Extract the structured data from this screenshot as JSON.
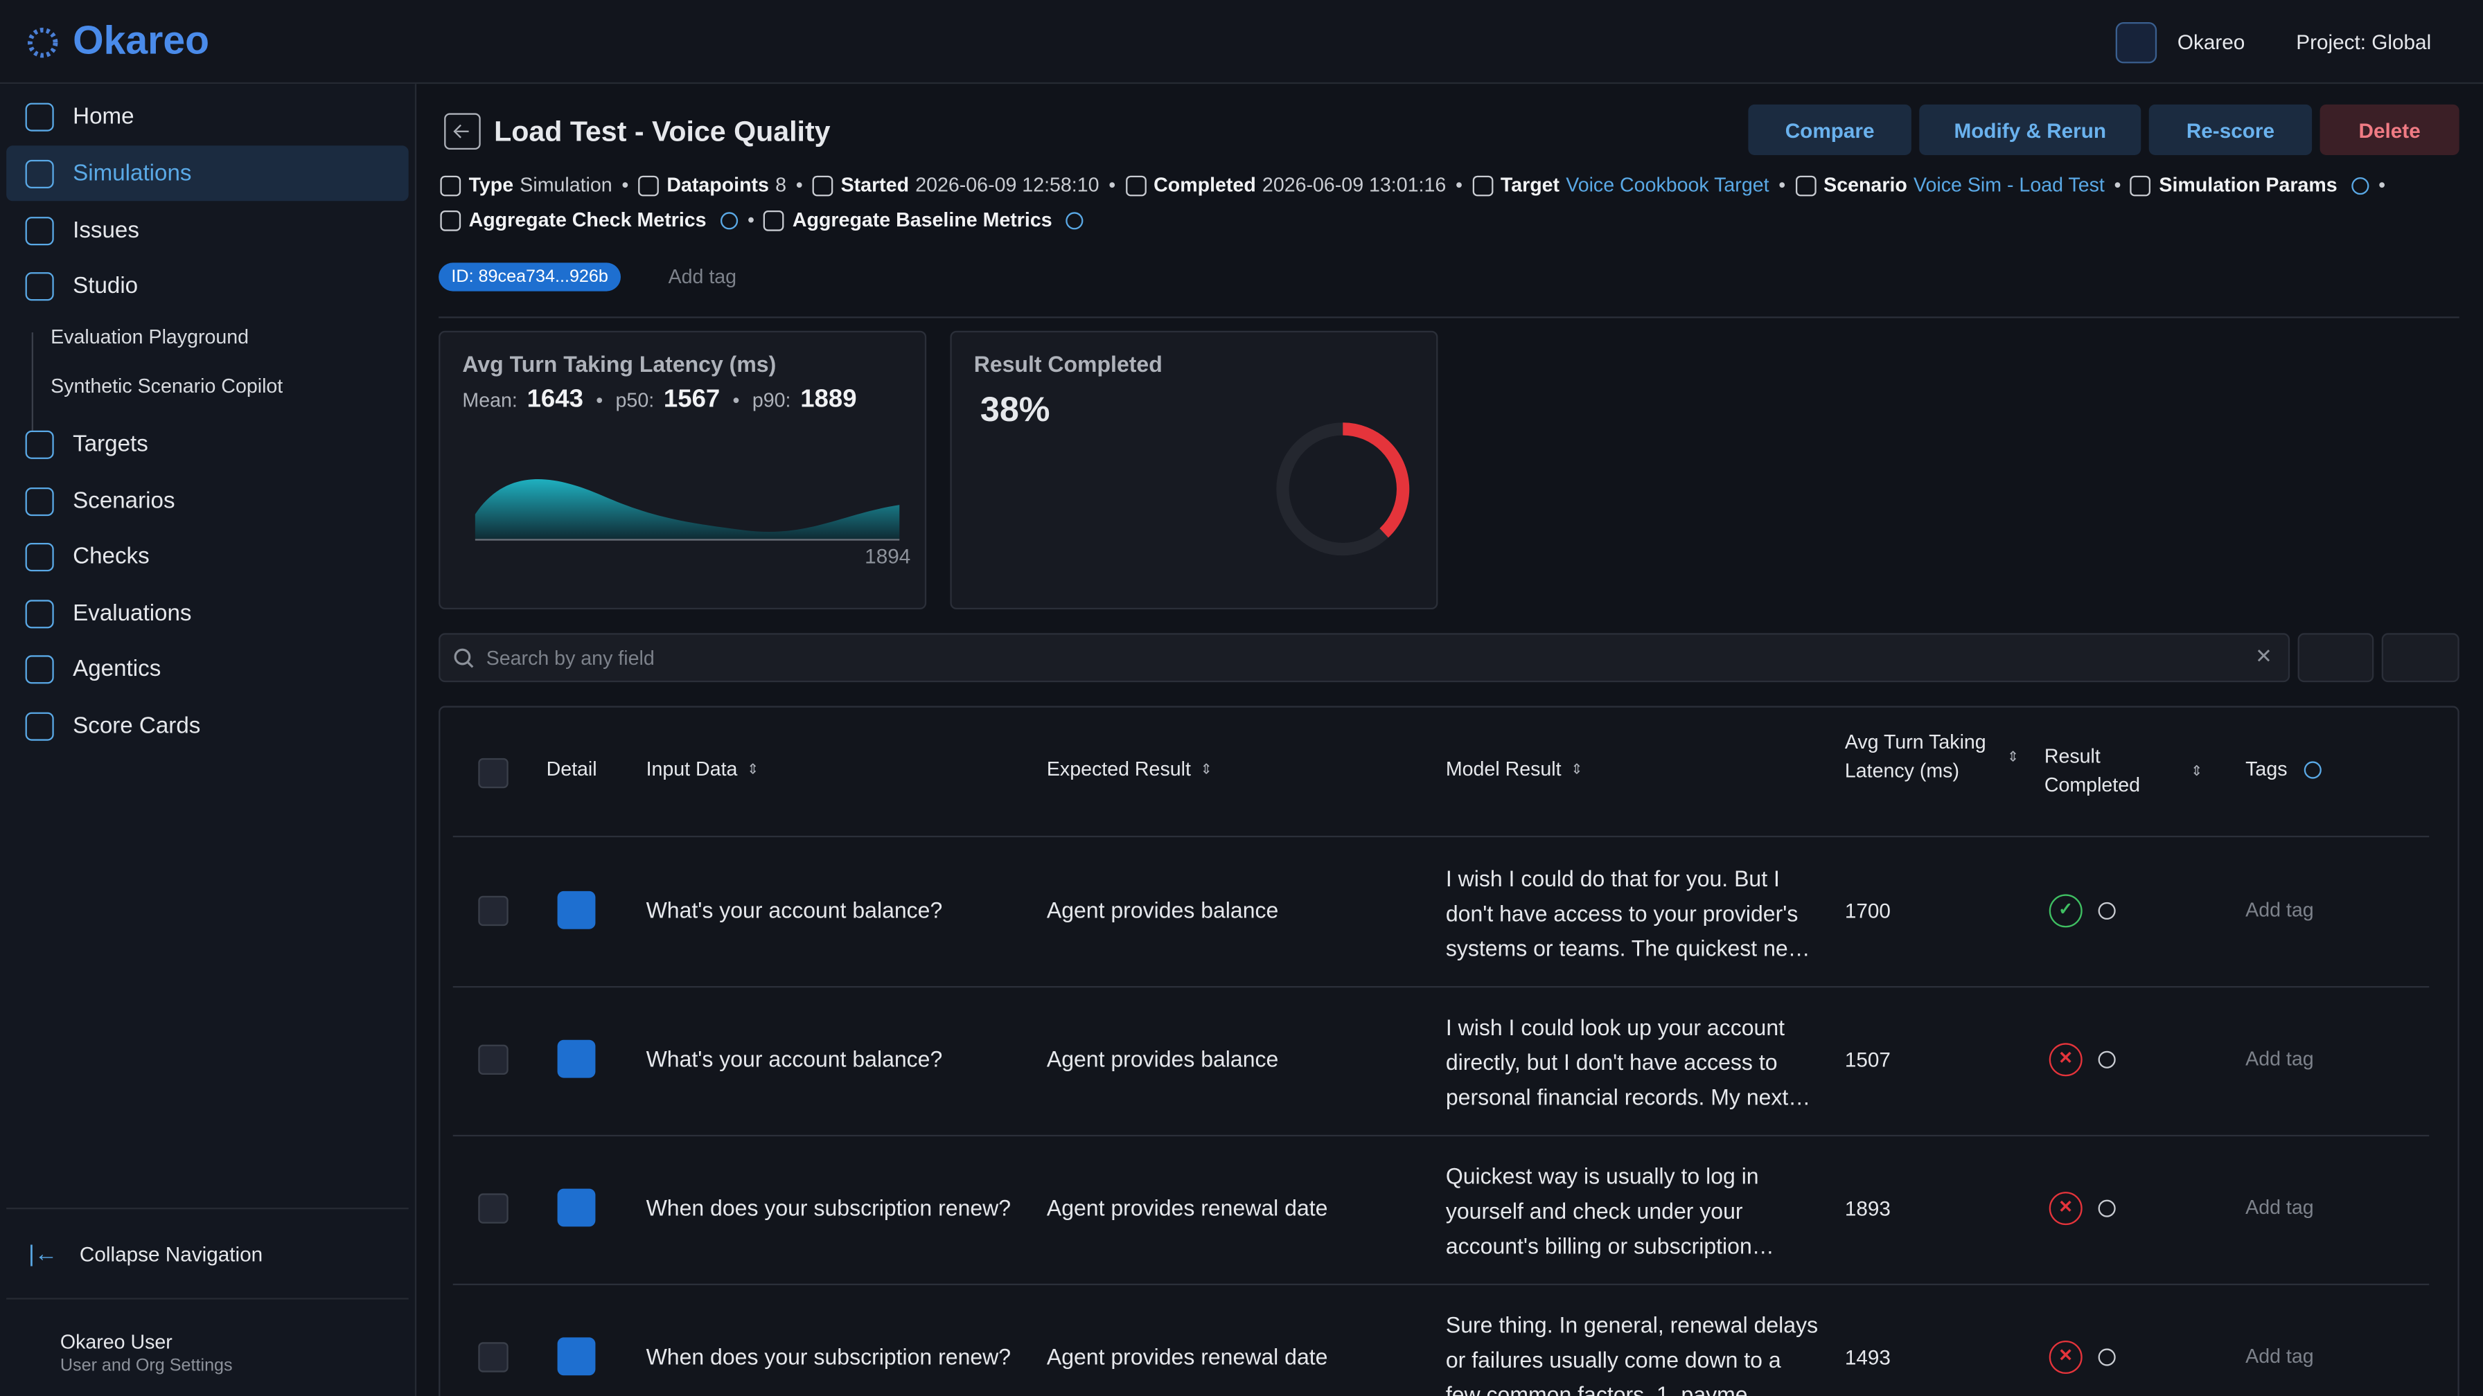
{
  "brand": "Okareo",
  "topbar": {
    "user": "Okareo",
    "project": "Project: Global"
  },
  "nav": {
    "items": [
      "Home",
      "Simulations",
      "Issues",
      "Studio",
      "Targets",
      "Scenarios",
      "Checks",
      "Evaluations",
      "Agentics",
      "Score Cards"
    ],
    "active": "Simulations",
    "studio_items": [
      "Evaluation Playground",
      "Synthetic Scenario Copilot"
    ],
    "collapse": "Collapse Navigation",
    "user_name": "Okareo User",
    "user_sub": "User and Org Settings"
  },
  "header": {
    "title": "Load Test - Voice Quality",
    "actions": [
      "Compare",
      "Modify & Rerun",
      "Re-score",
      "Delete"
    ],
    "meta": [
      {
        "label": "Type",
        "value": "Simulation"
      },
      {
        "label": "Datapoints",
        "value": 8
      },
      {
        "label": "Started",
        "value": "2026-06-09 12:58:10"
      },
      {
        "label": "Completed",
        "value": "2026-06-09 13:01:16"
      },
      {
        "label": "Target",
        "value": "Voice Cookbook Target",
        "link": true
      },
      {
        "label": "Scenario",
        "value": "Voice Sim - Load Test",
        "link": true
      },
      {
        "label": "Simulation Params",
        "info": true
      }
    ],
    "meta2": [
      {
        "label": "Aggregate Check Metrics",
        "info": true
      },
      {
        "label": "Aggregate Baseline Metrics",
        "info": true
      }
    ],
    "id_tag": "ID: 89cea734...926b",
    "add_tag": "Add tag"
  },
  "cards": {
    "latency": {
      "title": "Avg Turn Taking Latency (ms)",
      "stats": [
        {
          "label": "Mean:",
          "value": 1643
        },
        {
          "label": "p50:",
          "value": 1567
        },
        {
          "label": "p90:",
          "value": 1889
        }
      ],
      "axis_label": 1894
    },
    "completed": {
      "title": "Result Completed",
      "value": {
        "value": 38,
        "label": "38%"
      }
    }
  },
  "search": {
    "placeholder": "Search by any field"
  },
  "table": {
    "columns": [
      "Detail",
      "Input Data",
      "Expected Result",
      "Model Result",
      "Avg Turn Taking Latency (ms)",
      "Result Completed",
      "Tags"
    ],
    "rows": [
      {
        "input": "What's your account balance?",
        "expected": "Agent provides balance",
        "model": "I wish I could do that for you. But I don't have access to your provider's systems or teams. The quickest ne…",
        "latency": 1700,
        "completed": true,
        "tags": "Add tag"
      },
      {
        "input": "What's your account balance?",
        "expected": "Agent provides balance",
        "model": "I wish I could look up your account directly, but I don't have access to personal financial records. My next…",
        "latency": 1507,
        "completed": false,
        "tags": "Add tag"
      },
      {
        "input": "When does your subscription renew?",
        "expected": "Agent provides renewal date",
        "model": "Quickest way is usually to log in yourself and check under your account's billing or subscription…",
        "latency": 1893,
        "completed": false,
        "tags": "Add tag"
      },
      {
        "input": "When does your subscription renew?",
        "expected": "Agent provides renewal date",
        "model": "Sure thing. In general, renewal delays or failures usually come down to a few common factors. 1. payme",
        "latency": 1493,
        "completed": false,
        "tags": "Add tag"
      }
    ]
  }
}
